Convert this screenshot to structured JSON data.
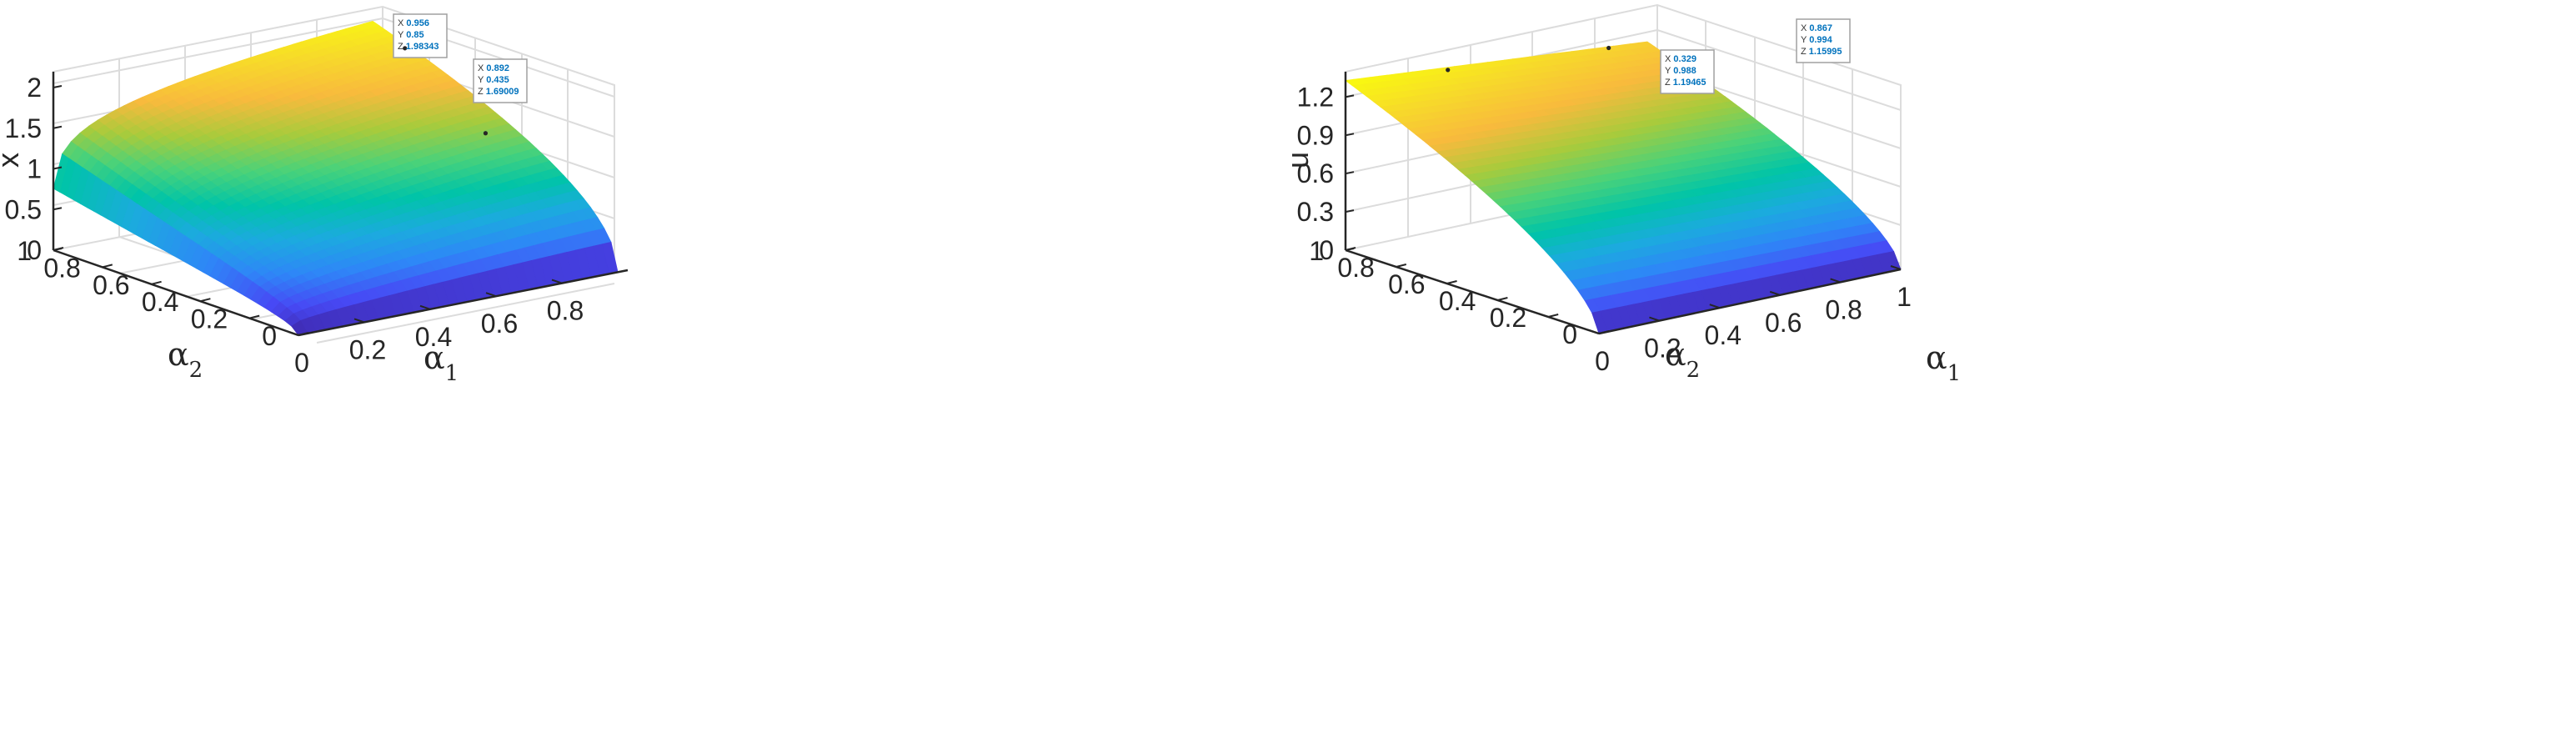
{
  "colors": {
    "colormap": [
      "#3e26a8",
      "#4749f5",
      "#2e87f7",
      "#1caadf",
      "#00c4a8",
      "#4bd279",
      "#a8cb3c",
      "#f8ba3d",
      "#f7da2a",
      "#f9fb0e"
    ],
    "grid": "#dcdcdc",
    "axis": "#262626",
    "tip_value": "#0072bd"
  },
  "chart_data": [
    {
      "type": "surface",
      "xlabel": "α",
      "xlabel_sub": "1",
      "ylabel": "α",
      "ylabel_sub": "2",
      "zlabel": "x",
      "xlim": [
        0,
        1
      ],
      "ylim": [
        0,
        1
      ],
      "zlim": [
        0,
        2.2
      ],
      "x_ticks": [
        "0",
        "0.2",
        "0.4",
        "0.6",
        "0.8"
      ],
      "y_ticks": [
        "0",
        "0.2",
        "0.4",
        "0.6",
        "0.8",
        "1"
      ],
      "z_ticks": [
        "0",
        "0.5",
        "1",
        "1.5",
        "2"
      ],
      "grid": true,
      "datatips": [
        {
          "x": "0.956",
          "y": "0.85",
          "z": "1.98343"
        },
        {
          "x": "0.892",
          "y": "0.435",
          "z": "1.69009"
        }
      ]
    },
    {
      "type": "surface",
      "xlabel": "α",
      "xlabel_sub": "1",
      "ylabel": "α",
      "ylabel_sub": "2",
      "zlabel": "u",
      "xlim": [
        0,
        1
      ],
      "ylim": [
        0,
        1
      ],
      "zlim": [
        0,
        1.35
      ],
      "x_ticks": [
        "0",
        "0.2",
        "0.4",
        "0.6",
        "0.8",
        "1"
      ],
      "y_ticks": [
        "0",
        "0.2",
        "0.4",
        "0.6",
        "0.8",
        "1"
      ],
      "z_ticks": [
        "0",
        "0.3",
        "0.6",
        "0.9",
        "1.2"
      ],
      "grid": true,
      "datatips": [
        {
          "x": "0.329",
          "y": "0.988",
          "z": "1.19465"
        },
        {
          "x": "0.867",
          "y": "0.994",
          "z": "1.15995"
        }
      ]
    }
  ]
}
